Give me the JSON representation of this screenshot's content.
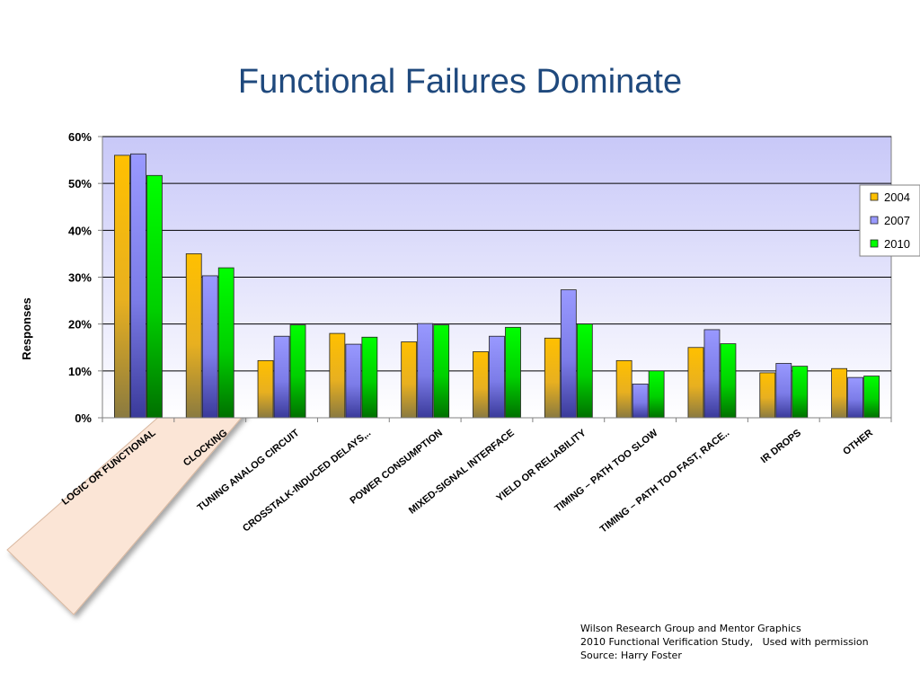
{
  "slide": {
    "title": "Functional Failures Dominate",
    "credits": [
      "Wilson Research Group and Mentor Graphics",
      "2010 Functional Verification Study,   Used with permission",
      "Source: Harry Foster"
    ]
  },
  "chart_data": {
    "type": "bar",
    "title": "",
    "xlabel": "",
    "ylabel": "Responses",
    "ylim": [
      0,
      60
    ],
    "yticks": [
      "0%",
      "10%",
      "20%",
      "30%",
      "40%",
      "50%",
      "60%"
    ],
    "grid": true,
    "legend_position": "right",
    "highlighted_category": "LOGIC OR FUNCTIONAL",
    "categories": [
      "LOGIC OR FUNCTIONAL",
      "CLOCKING",
      "TUNING ANALOG CIRCUIT",
      "CROSSTALK-INDUCED DELAYS,..",
      "POWER CONSUMPTION",
      "MIXED-SIGNAL INTERFACE",
      "YIELD OR RELIABILITY",
      "TIMING – PATH TOO SLOW",
      "TIMING – PATH TOO FAST, RACE..",
      "IR DROPS",
      "OTHER"
    ],
    "series": [
      {
        "name": "2004",
        "color": "#ffc000",
        "values": [
          56,
          35,
          12.2,
          18,
          16.2,
          14.1,
          17,
          12.2,
          15,
          9.6,
          10.5
        ]
      },
      {
        "name": "2007",
        "color": "#9999ff",
        "values": [
          56.3,
          30.3,
          17.4,
          15.7,
          20.1,
          17.4,
          27.3,
          7.2,
          18.8,
          11.6,
          8.6
        ]
      },
      {
        "name": "2010",
        "color": "#00ff00",
        "values": [
          51.7,
          32,
          19.8,
          17.2,
          19.8,
          19.3,
          20,
          10,
          15.8,
          11,
          8.9
        ]
      }
    ]
  }
}
